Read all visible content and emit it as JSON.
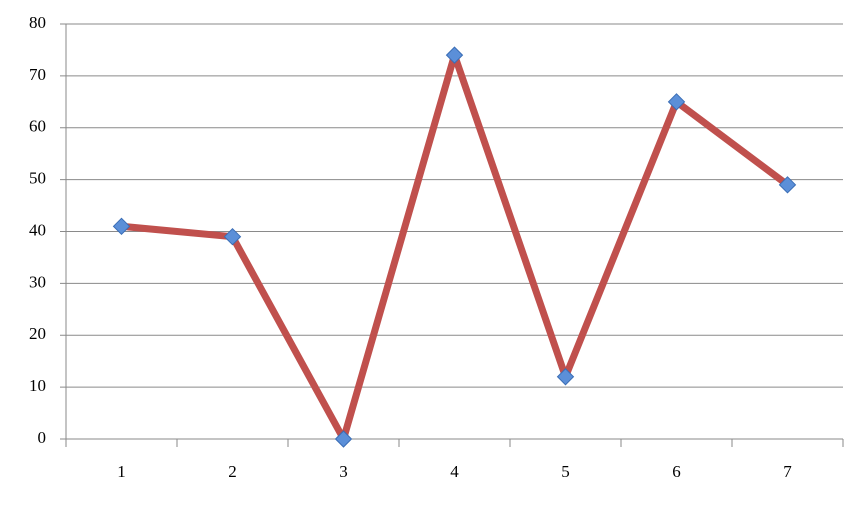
{
  "chart_data": {
    "type": "line",
    "categories": [
      "1",
      "2",
      "3",
      "4",
      "5",
      "6",
      "7"
    ],
    "values": [
      41,
      39,
      0,
      74,
      12,
      65,
      49
    ],
    "color": "#c0504d",
    "marker_color": "#5b8fd8",
    "ylim": [
      0,
      80
    ],
    "yticks": [
      0,
      10,
      20,
      30,
      40,
      50,
      60,
      70,
      80
    ],
    "grid": true
  }
}
